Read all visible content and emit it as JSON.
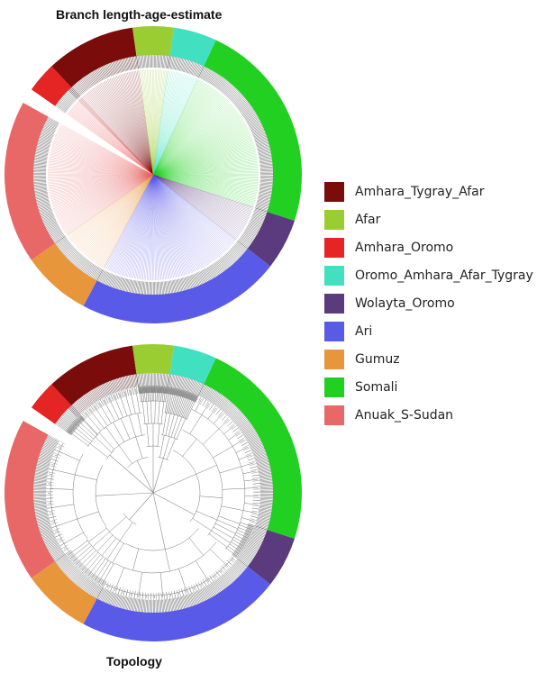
{
  "titles": {
    "top": "Branch length-age-estimate",
    "bottom": "Topology"
  },
  "groups": [
    {
      "label": "Amhara_Tygray_Afar",
      "color": "#7a0c0c"
    },
    {
      "label": "Afar",
      "color": "#9acd32"
    },
    {
      "label": "Amhara_Oromo",
      "color": "#e52424"
    },
    {
      "label": "Oromo_Amhara_Afar_Tygray",
      "color": "#40e0c0"
    },
    {
      "label": "Wolayta_Oromo",
      "color": "#5b3a7e"
    },
    {
      "label": "Ari",
      "color": "#5a5ae8"
    },
    {
      "label": "Gumuz",
      "color": "#e8963c"
    },
    {
      "label": "Somali",
      "color": "#22d022"
    },
    {
      "label": "Anuak_S-Sudan",
      "color": "#e86868"
    }
  ]
}
